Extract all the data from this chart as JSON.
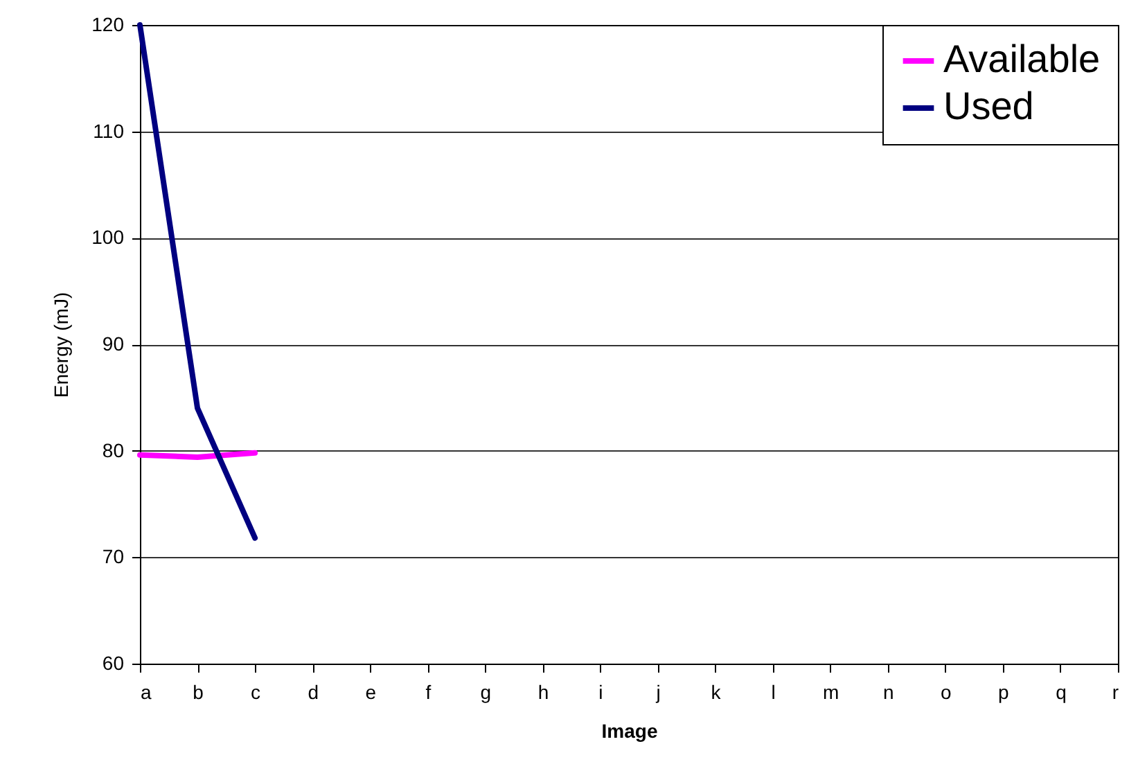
{
  "chart_data": {
    "type": "line",
    "xlabel": "Image",
    "ylabel": "Energy (mJ)",
    "categories": [
      "a",
      "b",
      "c",
      "d",
      "e",
      "f",
      "g",
      "h",
      "i",
      "j",
      "k",
      "l",
      "m",
      "n",
      "o",
      "p",
      "q",
      "r"
    ],
    "series": [
      {
        "name": "Available",
        "color": "#ff00ff",
        "values": [
          79.6,
          79.4,
          79.8,
          null,
          null,
          null,
          null,
          null,
          null,
          null,
          null,
          null,
          null,
          null,
          null,
          null,
          null,
          null
        ]
      },
      {
        "name": "Used",
        "color": "#000080",
        "values": [
          120,
          84,
          71.8,
          null,
          null,
          null,
          null,
          null,
          null,
          null,
          null,
          null,
          null,
          null,
          null,
          null,
          null,
          null
        ]
      }
    ],
    "ylim": [
      60,
      120
    ],
    "yticks": [
      60,
      70,
      80,
      90,
      100,
      110,
      120
    ],
    "grid": "y",
    "legend": "top right",
    "line_style": "solid",
    "marker": "none"
  }
}
